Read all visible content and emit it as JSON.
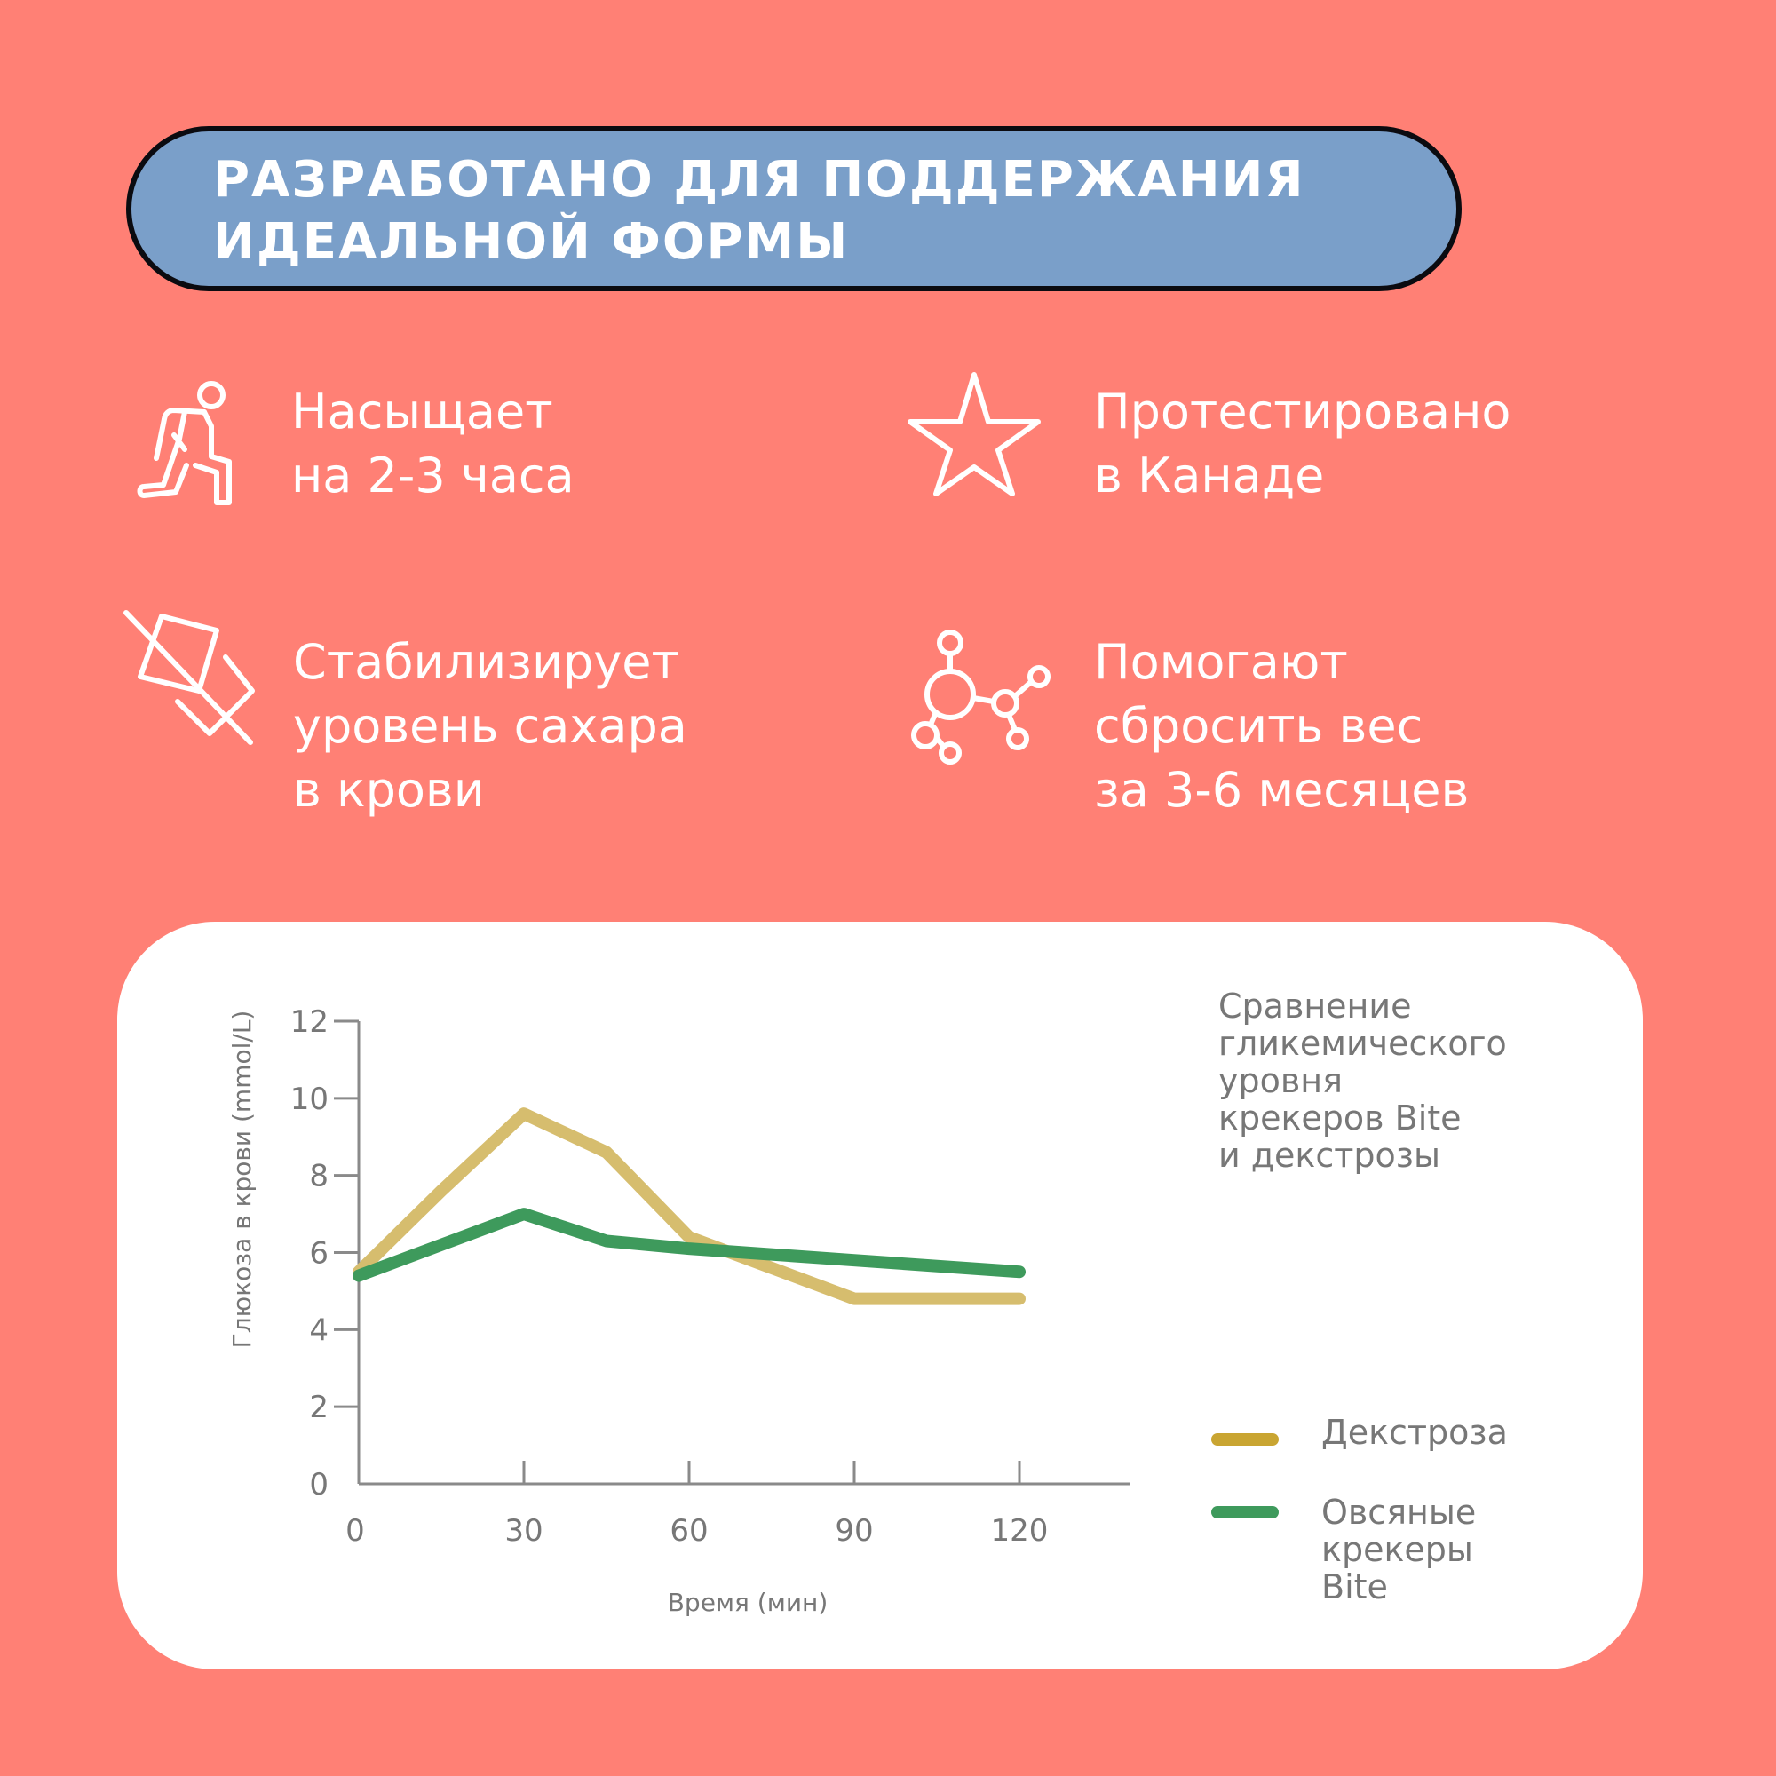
{
  "banner": {
    "title_lines": [
      "РАЗРАБОТАНО ДЛЯ ПОДДЕРЖАНИЯ",
      "ИДЕАЛЬНОЙ ФОРМЫ"
    ]
  },
  "features": [
    {
      "icon": "kneeling-person-icon",
      "lines": [
        "Насыщает",
        "на 2-3 часа"
      ]
    },
    {
      "icon": "star-icon",
      "lines": [
        "Протестировано",
        "в Канаде"
      ]
    },
    {
      "icon": "crossed-sugar-cube-icon",
      "lines": [
        "Стабилизирует",
        "уровень сахара",
        "в крови"
      ]
    },
    {
      "icon": "molecule-icon",
      "lines": [
        "Помогают",
        "сбросить вес",
        "за 3-6 месяцев"
      ]
    }
  ],
  "chart_data": {
    "type": "line",
    "title_lines": [
      "Сравнение",
      "гликемического",
      "уровня",
      "крекеров Bite",
      "и декстрозы"
    ],
    "xlabel": "Время (мин)",
    "ylabel": "Глюкоза в крови (mmol/L)",
    "xlim": [
      0,
      140
    ],
    "ylim": [
      0,
      12
    ],
    "xticks": [
      0,
      30,
      60,
      90,
      120
    ],
    "yticks": [
      0,
      2,
      4,
      6,
      8,
      10,
      12
    ],
    "grid": false,
    "legend_position": "right",
    "series": [
      {
        "name": "Декстроза",
        "legend_lines": [
          "Декстроза"
        ],
        "color": "#D6BD6E",
        "legend_color": "#C9A532",
        "x": [
          0,
          15,
          30,
          45,
          60,
          90,
          120
        ],
        "y": [
          5.5,
          7.6,
          9.6,
          8.6,
          6.4,
          4.8,
          4.8
        ]
      },
      {
        "name": "Овсяные крекеры Bite",
        "legend_lines": [
          "Овсяные",
          "крекеры",
          "Bite"
        ],
        "color": "#3E9A5C",
        "legend_color": "#3E9A5C",
        "x": [
          0,
          30,
          45,
          60,
          90,
          120
        ],
        "y": [
          5.4,
          7.0,
          6.3,
          6.1,
          5.8,
          5.5
        ]
      }
    ]
  }
}
